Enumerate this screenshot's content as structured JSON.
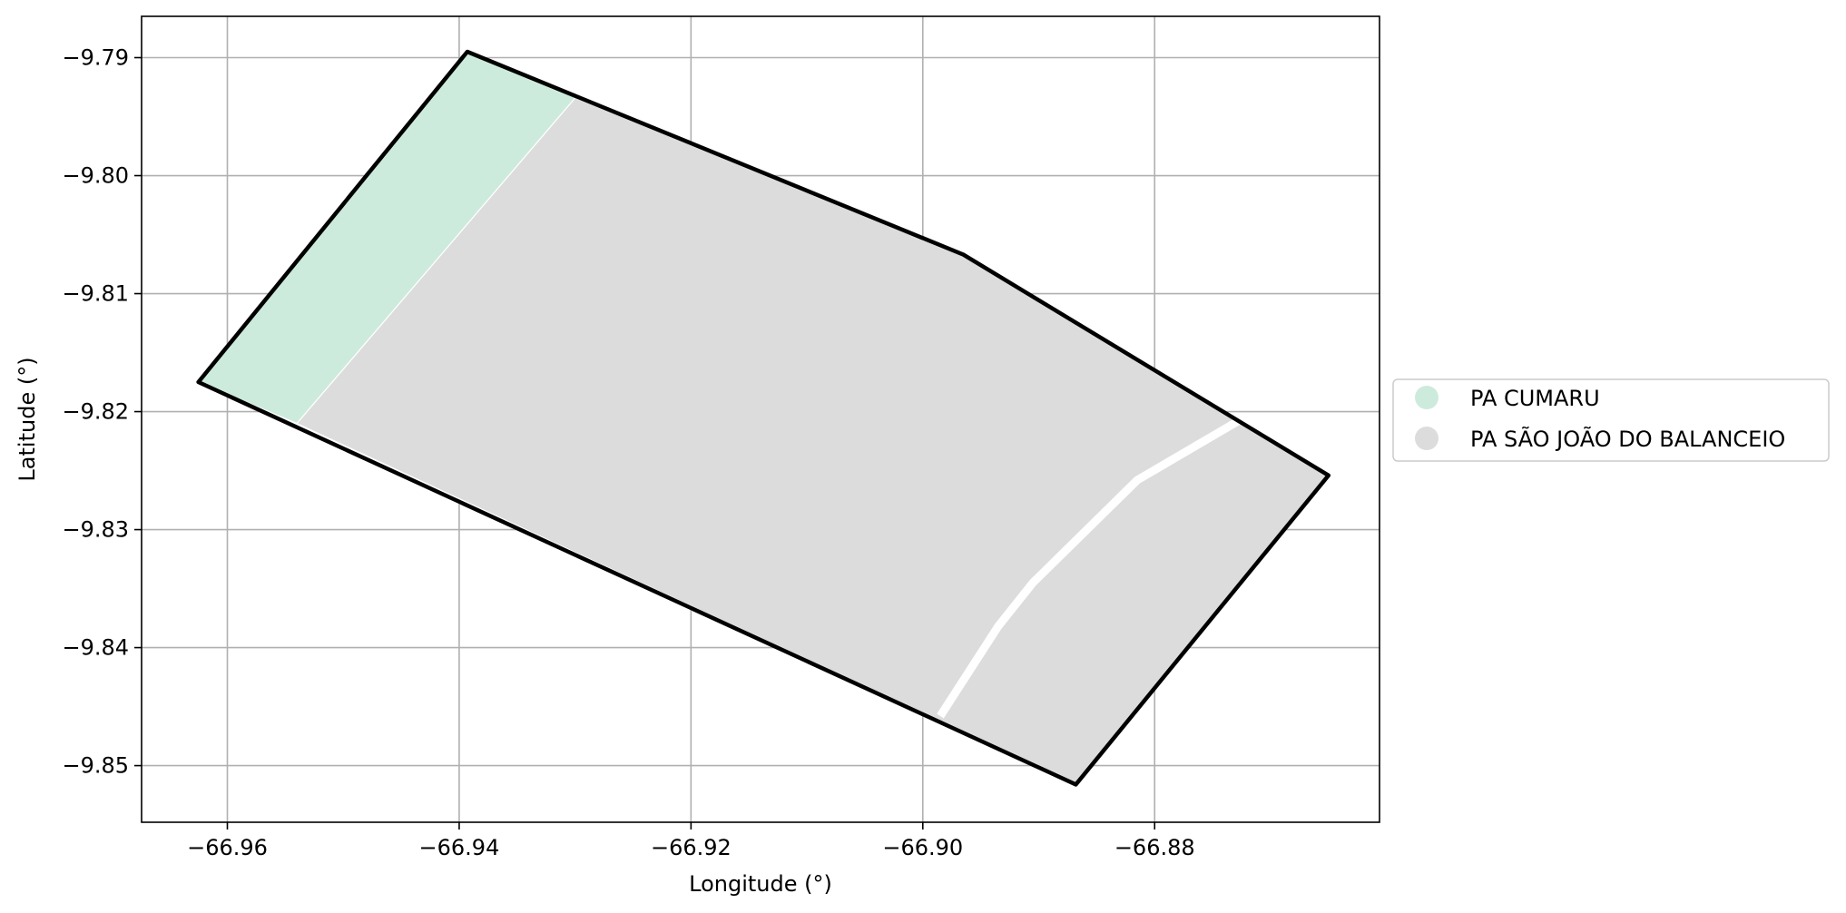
{
  "chart_data": {
    "type": "map",
    "xlabel": "Longitude (°)",
    "ylabel": "Latitude (°)",
    "xlim": [
      -66.9674,
      -66.8606
    ],
    "ylim": [
      -9.8548,
      -9.7865
    ],
    "xticks": [
      -66.96,
      -66.94,
      -66.92,
      -66.9,
      -66.88
    ],
    "xtick_labels": [
      "−66.96",
      "−66.94",
      "−66.92",
      "−66.90",
      "−66.88"
    ],
    "yticks": [
      -9.79,
      -9.8,
      -9.81,
      -9.82,
      -9.83,
      -9.84,
      -9.85
    ],
    "ytick_labels": [
      "−9.79",
      "−9.80",
      "−9.81",
      "−9.82",
      "−9.83",
      "−9.84",
      "−9.85"
    ],
    "grid": true,
    "legend_placement": "center-left outside right",
    "regions": [
      {
        "name": "PA CUMARU",
        "color": "#cdebdc",
        "polygon": [
          [
            -66.9393,
            -9.7895
          ],
          [
            -66.9298,
            -9.7932
          ],
          [
            -66.954,
            -9.821
          ],
          [
            -66.9625,
            -9.8175
          ]
        ]
      },
      {
        "name": "PA SÃO JOÃO DO BALANCEIO",
        "color": "#dcdcdc",
        "polygon": [
          [
            -66.9298,
            -9.7932
          ],
          [
            -66.8965,
            -9.8067
          ],
          [
            -66.865,
            -9.8254
          ],
          [
            -66.8868,
            -9.8516
          ],
          [
            -66.954,
            -9.821
          ]
        ]
      }
    ],
    "outline": {
      "color": "#000000",
      "polygon": [
        [
          -66.9393,
          -9.7895
        ],
        [
          -66.8965,
          -9.8067
        ],
        [
          -66.865,
          -9.8254
        ],
        [
          -66.8868,
          -9.8516
        ],
        [
          -66.9625,
          -9.8175
        ]
      ]
    },
    "road_line": {
      "color": "#ffffff",
      "points": [
        [
          -66.8728,
          -9.8208
        ],
        [
          -66.8815,
          -9.8258
        ],
        [
          -66.8905,
          -9.8345
        ],
        [
          -66.8935,
          -9.8382
        ],
        [
          -66.8985,
          -9.8458
        ]
      ]
    }
  }
}
